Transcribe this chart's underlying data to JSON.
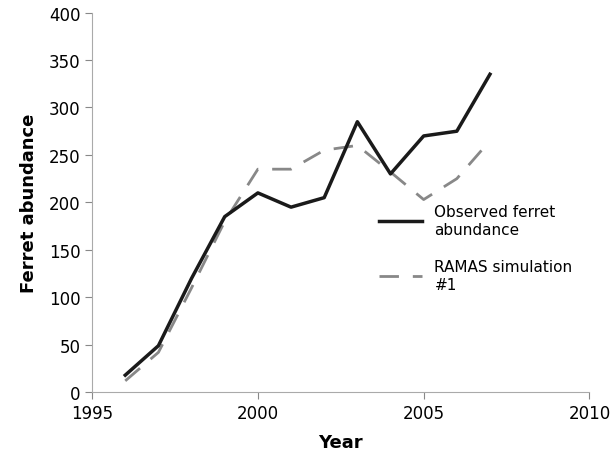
{
  "observed_years": [
    1996,
    1997,
    1998,
    1999,
    2000,
    2001,
    2002,
    2003,
    2004,
    2005,
    2006,
    2007
  ],
  "observed_values": [
    18,
    49,
    120,
    185,
    210,
    195,
    205,
    285,
    230,
    270,
    275,
    335
  ],
  "simulated_years": [
    1996,
    1997,
    1998,
    1999,
    2000,
    2001,
    2002,
    2003,
    2004,
    2005,
    2006,
    2007
  ],
  "simulated_values": [
    12,
    42,
    110,
    180,
    235,
    235,
    255,
    260,
    232,
    203,
    225,
    265
  ],
  "xlabel": "Year",
  "ylabel": "Ferret abundance",
  "xlim": [
    1995,
    2010
  ],
  "ylim": [
    0,
    400
  ],
  "xticks": [
    1995,
    2000,
    2005,
    2010
  ],
  "yticks": [
    0,
    50,
    100,
    150,
    200,
    250,
    300,
    350,
    400
  ],
  "observed_label": "Observed ferret\nabundance",
  "simulated_label": "RAMAS simulation\n#1",
  "observed_color": "#1a1a1a",
  "simulated_color": "#888888",
  "linewidth_observed": 2.5,
  "linewidth_simulated": 2.0,
  "background_color": "#ffffff",
  "legend_fontsize": 11,
  "axis_label_fontsize": 13,
  "tick_fontsize": 12
}
